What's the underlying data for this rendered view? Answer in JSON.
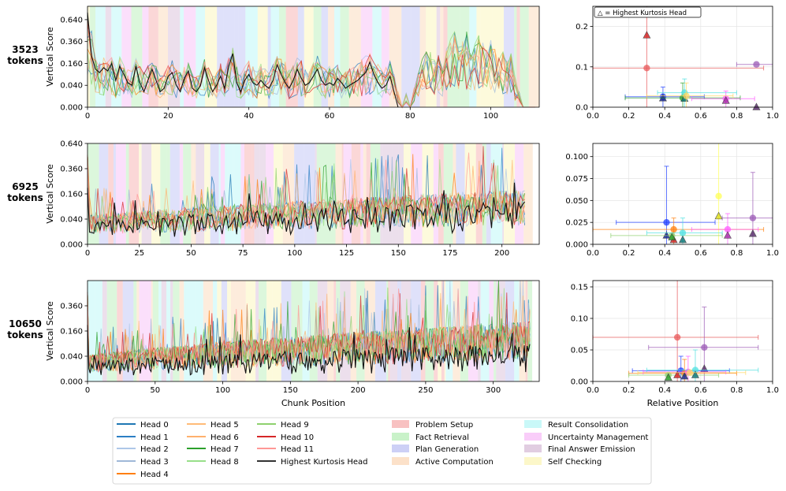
{
  "chart_data": [
    {
      "type": "line",
      "row_label": [
        "3523",
        "tokens"
      ],
      "ylabel": "Vertical Score",
      "xlabel": "",
      "xlim": [
        0,
        112
      ],
      "x_ticks": [
        "0",
        "20",
        "40",
        "60",
        "80",
        "100"
      ],
      "x_tick_values": [
        0,
        20,
        40,
        60,
        80,
        100
      ],
      "y_ticks": [
        "0.000",
        "0.040",
        "0.160",
        "0.360",
        "0.640"
      ],
      "y_tick_values": [
        0,
        0.04,
        0.16,
        0.36,
        0.64
      ],
      "y_scale": "sqrt",
      "ymax": 0.85,
      "highest_kurtosis_series": [
        0.75,
        0.22,
        0.12,
        0.1,
        0.13,
        0.11,
        0.16,
        0.06,
        0.14,
        0.09,
        0.05,
        0.04,
        0.14,
        0.05,
        0.02,
        0.06,
        0.12,
        0.06,
        0.02,
        0.03,
        0.08,
        0.1,
        0.04,
        0.02,
        0.07,
        0.11,
        0.03,
        0.02,
        0.04,
        0.13,
        0.06,
        0.02,
        0.04,
        0.08,
        0.03,
        0.14,
        0.24,
        0.05,
        0.02,
        0.06,
        0.09,
        0.05,
        0.04,
        0.06,
        0.04,
        0.03,
        0.06,
        0.15,
        0.09,
        0.05,
        0.03,
        0.06,
        0.12,
        0.07,
        0.04,
        0.05,
        0.08,
        0.12,
        0.06,
        0.04,
        0.05,
        0.04,
        0.07,
        0.05,
        0.03,
        0.04,
        0.05,
        0.06,
        0.08,
        0.1,
        0.17,
        0.09,
        0.05,
        0.03,
        0.04,
        0.08,
        0.02,
        0.0,
        0.0,
        0.0,
        0.0,
        0.0,
        0.0,
        0.0,
        0.0,
        0.0,
        0.0,
        0.0,
        0.0,
        0.0,
        0.0,
        0.0,
        0.0,
        0.0,
        0.0,
        0.0,
        0.0,
        0.0,
        0.0,
        0.0,
        0.0,
        0.0,
        0.0,
        0.0,
        0.0,
        0.0,
        0.0,
        0.0,
        0.0,
        0.0,
        0.0
      ],
      "heads_envelope": [
        0.8,
        0.5,
        0.2,
        0.18,
        0.22,
        0.2,
        0.25,
        0.15,
        0.22,
        0.18,
        0.12,
        0.12,
        0.2,
        0.15,
        0.1,
        0.16,
        0.18,
        0.14,
        0.08,
        0.1,
        0.16,
        0.2,
        0.12,
        0.1,
        0.14,
        0.18,
        0.1,
        0.08,
        0.1,
        0.2,
        0.14,
        0.08,
        0.1,
        0.16,
        0.12,
        0.22,
        0.3,
        0.14,
        0.1,
        0.14,
        0.18,
        0.14,
        0.12,
        0.16,
        0.14,
        0.1,
        0.16,
        0.22,
        0.2,
        0.18,
        0.12,
        0.16,
        0.22,
        0.18,
        0.14,
        0.14,
        0.18,
        0.22,
        0.16,
        0.12,
        0.14,
        0.14,
        0.18,
        0.14,
        0.12,
        0.16,
        0.14,
        0.18,
        0.2,
        0.24,
        0.28,
        0.2,
        0.16,
        0.12,
        0.14,
        0.18,
        0.1,
        0.02,
        0.0,
        0.02,
        0.0,
        0.03,
        0.1,
        0.2,
        0.26,
        0.3,
        0.2,
        0.28,
        0.12,
        0.3,
        0.45,
        0.5,
        0.35,
        0.42,
        0.48,
        0.3,
        0.38,
        0.45,
        0.36,
        0.28,
        0.4,
        0.3,
        0.2,
        0.3,
        0.18,
        0.25,
        0.08,
        0.02,
        0.0,
        0.0,
        0.0,
        0.0
      ]
    },
    {
      "type": "line",
      "row_label": [
        "6925",
        "tokens"
      ],
      "ylabel": "Vertical Score",
      "xlabel": "",
      "xlim": [
        0,
        218
      ],
      "x_ticks": [
        "0",
        "25",
        "50",
        "75",
        "100",
        "125",
        "150",
        "175",
        "200"
      ],
      "x_tick_values": [
        0,
        25,
        50,
        75,
        100,
        125,
        150,
        175,
        200
      ],
      "y_ticks": [
        "0.000",
        "0.040",
        "0.160",
        "0.360",
        "0.640"
      ],
      "y_tick_values": [
        0,
        0.04,
        0.16,
        0.36,
        0.64
      ],
      "y_scale": "sqrt",
      "ymax": 0.64,
      "n_points": 212,
      "highest_kurtosis_level": 0.02,
      "heads_level": 0.03
    },
    {
      "type": "line",
      "row_label": [
        "10650",
        "tokens"
      ],
      "ylabel": "Vertical Score",
      "xlabel": "Chunk Position",
      "xlim": [
        0,
        334
      ],
      "x_ticks": [
        "0",
        "50",
        "100",
        "150",
        "200",
        "250",
        "300"
      ],
      "x_tick_values": [
        0,
        50,
        100,
        150,
        200,
        250,
        300
      ],
      "y_ticks": [
        "0.000",
        "0.040",
        "0.160",
        "0.360"
      ],
      "y_tick_values": [
        0,
        0.04,
        0.16,
        0.36
      ],
      "y_scale": "sqrt",
      "ymax": 0.64,
      "n_points": 328,
      "highest_kurtosis_level": 0.015,
      "heads_level": 0.025
    },
    {
      "type": "scatter",
      "title": "",
      "xlabel": "",
      "ylabel": "",
      "xlim": [
        0,
        1
      ],
      "ylim": [
        0,
        0.25
      ],
      "x_ticks": [
        "0.0",
        "0.2",
        "0.4",
        "0.6",
        "0.8",
        "1.0"
      ],
      "y_ticks": [
        "0.0",
        "0.1",
        "0.2"
      ],
      "y_tick_values": [
        0,
        0.1,
        0.2
      ],
      "legend_note": "△ = Highest Kurtosis Head",
      "points": [
        {
          "x": 0.3,
          "y": 0.097,
          "xerr": [
            0.0,
            0.95
          ],
          "yerr": [
            0.0,
            0.25
          ],
          "color": "#e8585a",
          "marker": "circle"
        },
        {
          "x": 0.3,
          "y": 0.178,
          "xerr": null,
          "yerr": null,
          "color": "#d62728",
          "marker": "triangle"
        },
        {
          "x": 0.91,
          "y": 0.106,
          "xerr": [
            0.8,
            1.0
          ],
          "yerr": null,
          "color": "#9b59b6",
          "marker": "circle"
        },
        {
          "x": 0.91,
          "y": 0.0,
          "xerr": null,
          "yerr": null,
          "color": "#5e3370",
          "marker": "triangle"
        },
        {
          "x": 0.39,
          "y": 0.026,
          "xerr": [
            0.18,
            0.62
          ],
          "yerr": [
            0.0,
            0.05
          ],
          "color": "#1f3fff",
          "marker": "circle"
        },
        {
          "x": 0.39,
          "y": 0.022,
          "xerr": null,
          "yerr": null,
          "color": "#1a2a8f",
          "marker": "triangle"
        },
        {
          "x": 0.5,
          "y": 0.023,
          "xerr": [
            0.18,
            0.82
          ],
          "yerr": [
            0.0,
            0.06
          ],
          "color": "#2ca02c",
          "marker": "circle"
        },
        {
          "x": 0.51,
          "y": 0.036,
          "xerr": [
            0.36,
            0.8
          ],
          "yerr": [
            0.0,
            0.07
          ],
          "color": "#4fe0e0",
          "marker": "circle"
        },
        {
          "x": 0.51,
          "y": 0.021,
          "xerr": null,
          "yerr": null,
          "color": "#117a7a",
          "marker": "triangle"
        },
        {
          "x": 0.74,
          "y": 0.021,
          "xerr": [
            0.55,
            0.9
          ],
          "yerr": [
            0.0,
            0.04
          ],
          "color": "#ff5cff",
          "marker": "circle"
        },
        {
          "x": 0.74,
          "y": 0.016,
          "xerr": null,
          "yerr": null,
          "color": "#a830a8",
          "marker": "triangle"
        },
        {
          "x": 0.52,
          "y": 0.028,
          "xerr": [
            0.3,
            0.78
          ],
          "yerr": [
            0.0,
            0.06
          ],
          "color": "#ffd966",
          "marker": "circle"
        }
      ]
    },
    {
      "type": "scatter",
      "title": "",
      "xlabel": "",
      "ylabel": "",
      "xlim": [
        0,
        1
      ],
      "ylim": [
        0,
        0.115
      ],
      "x_ticks": [
        "0.0",
        "0.2",
        "0.4",
        "0.6",
        "0.8",
        "1.0"
      ],
      "y_ticks": [
        "0.000",
        "0.025",
        "0.050",
        "0.075",
        "0.100"
      ],
      "y_tick_values": [
        0,
        0.025,
        0.05,
        0.075,
        0.1
      ],
      "points": [
        {
          "x": 0.7,
          "y": 0.055,
          "xerr": null,
          "yerr": [
            0.0,
            0.115
          ],
          "color": "#ffff55",
          "marker": "circle"
        },
        {
          "x": 0.7,
          "y": 0.032,
          "xerr": null,
          "yerr": null,
          "color": "#dddd22",
          "marker": "triangle"
        },
        {
          "x": 0.41,
          "y": 0.025,
          "xerr": [
            0.13,
            0.68
          ],
          "yerr": [
            0.0,
            0.089
          ],
          "color": "#1f3fff",
          "marker": "circle"
        },
        {
          "x": 0.41,
          "y": 0.01,
          "xerr": null,
          "yerr": null,
          "color": "#1a2a8f",
          "marker": "triangle"
        },
        {
          "x": 0.45,
          "y": 0.017,
          "xerr": [
            0.0,
            0.95
          ],
          "yerr": [
            0.0,
            0.03
          ],
          "color": "#ff7f0e",
          "marker": "circle"
        },
        {
          "x": 0.45,
          "y": 0.005,
          "xerr": null,
          "yerr": null,
          "color": "#d62728",
          "marker": "triangle"
        },
        {
          "x": 0.44,
          "y": 0.01,
          "xerr": [
            0.1,
            0.72
          ],
          "yerr": null,
          "color": "#8ed16e",
          "marker": "circle"
        },
        {
          "x": 0.5,
          "y": 0.013,
          "xerr": [
            0.3,
            0.72
          ],
          "yerr": [
            0.0,
            0.03
          ],
          "color": "#4fe0e0",
          "marker": "circle"
        },
        {
          "x": 0.5,
          "y": 0.005,
          "xerr": null,
          "yerr": null,
          "color": "#117a7a",
          "marker": "triangle"
        },
        {
          "x": 0.75,
          "y": 0.017,
          "xerr": [
            0.55,
            0.92
          ],
          "yerr": [
            0.0,
            0.035
          ],
          "color": "#ff5cff",
          "marker": "circle"
        },
        {
          "x": 0.75,
          "y": 0.01,
          "xerr": null,
          "yerr": null,
          "color": "#a830a8",
          "marker": "triangle"
        },
        {
          "x": 0.89,
          "y": 0.03,
          "xerr": [
            0.72,
            1.0
          ],
          "yerr": [
            0.0,
            0.082
          ],
          "color": "#9b59b6",
          "marker": "circle"
        },
        {
          "x": 0.89,
          "y": 0.012,
          "xerr": null,
          "yerr": null,
          "color": "#5e3370",
          "marker": "triangle"
        },
        {
          "x": 0.44,
          "y": 0.008,
          "xerr": null,
          "yerr": null,
          "color": "#2ca02c",
          "marker": "triangle"
        }
      ]
    },
    {
      "type": "scatter",
      "title": "",
      "xlabel": "Relative Position",
      "ylabel": "",
      "xlim": [
        0,
        1
      ],
      "ylim": [
        0,
        0.16
      ],
      "x_ticks": [
        "0.0",
        "0.2",
        "0.4",
        "0.6",
        "0.8",
        "1.0"
      ],
      "y_ticks": [
        "0.00",
        "0.05",
        "0.10",
        "0.15"
      ],
      "y_tick_values": [
        0,
        0.05,
        0.1,
        0.15
      ],
      "points": [
        {
          "x": 0.47,
          "y": 0.07,
          "xerr": [
            0.0,
            0.92
          ],
          "yerr": [
            0.0,
            0.16
          ],
          "color": "#e8585a",
          "marker": "circle"
        },
        {
          "x": 0.62,
          "y": 0.054,
          "xerr": [
            0.31,
            0.92
          ],
          "yerr": [
            0.0,
            0.118
          ],
          "color": "#9b59b6",
          "marker": "circle"
        },
        {
          "x": 0.62,
          "y": 0.02,
          "xerr": null,
          "yerr": null,
          "color": "#5e3370",
          "marker": "triangle"
        },
        {
          "x": 0.49,
          "y": 0.017,
          "xerr": [
            0.22,
            0.76
          ],
          "yerr": [
            0.0,
            0.04
          ],
          "color": "#1f3fff",
          "marker": "circle"
        },
        {
          "x": 0.51,
          "y": 0.013,
          "xerr": [
            0.2,
            0.8
          ],
          "yerr": [
            0.0,
            0.035
          ],
          "color": "#ff7f0e",
          "marker": "circle"
        },
        {
          "x": 0.53,
          "y": 0.015,
          "xerr": [
            0.28,
            0.74
          ],
          "yerr": [
            0.0,
            0.04
          ],
          "color": "#ff5cff",
          "marker": "circle"
        },
        {
          "x": 0.57,
          "y": 0.018,
          "xerr": [
            0.3,
            0.92
          ],
          "yerr": [
            0.0,
            0.05
          ],
          "color": "#4fe0e0",
          "marker": "circle"
        },
        {
          "x": 0.42,
          "y": 0.01,
          "xerr": [
            0.2,
            0.7
          ],
          "yerr": null,
          "color": "#8ed16e",
          "marker": "circle"
        },
        {
          "x": 0.42,
          "y": 0.006,
          "xerr": null,
          "yerr": null,
          "color": "#2ca02c",
          "marker": "triangle"
        },
        {
          "x": 0.47,
          "y": 0.01,
          "xerr": null,
          "yerr": null,
          "color": "#d62728",
          "marker": "triangle"
        },
        {
          "x": 0.51,
          "y": 0.008,
          "xerr": null,
          "yerr": null,
          "color": "#1a2a8f",
          "marker": "triangle"
        },
        {
          "x": 0.57,
          "y": 0.01,
          "xerr": null,
          "yerr": null,
          "color": "#117a7a",
          "marker": "triangle"
        },
        {
          "x": 0.54,
          "y": 0.014,
          "xerr": [
            0.25,
            0.85
          ],
          "yerr": null,
          "color": "#ffd966",
          "marker": "circle"
        }
      ]
    }
  ],
  "legend": {
    "heads": [
      {
        "label": "Head 0",
        "color": "#1f77b4"
      },
      {
        "label": "Head 1",
        "color": "#2c7fc4"
      },
      {
        "label": "Head 2",
        "color": "#aec7e8"
      },
      {
        "label": "Head 3",
        "color": "#9fb8d8"
      },
      {
        "label": "Head 4",
        "color": "#ff7f0e"
      },
      {
        "label": "Head 5",
        "color": "#ffbb78"
      },
      {
        "label": "Head 6",
        "color": "#ffb16e"
      },
      {
        "label": "Head 7",
        "color": "#2ca02c"
      },
      {
        "label": "Head 8",
        "color": "#98df8a"
      },
      {
        "label": "Head 9",
        "color": "#8ed16e"
      },
      {
        "label": "Head 10",
        "color": "#d62728"
      },
      {
        "label": "Head 11",
        "color": "#ff9896"
      },
      {
        "label": "Highest Kurtosis Head",
        "color": "#333333"
      }
    ],
    "phases": [
      {
        "label": "Problem Setup",
        "color": "#f7b6b6"
      },
      {
        "label": "Fact Retrieval",
        "color": "#bff0bf"
      },
      {
        "label": "Plan Generation",
        "color": "#c4c8f5"
      },
      {
        "label": "Active Computation",
        "color": "#fbdcc0"
      },
      {
        "label": "Result Consolidation",
        "color": "#bff7f7"
      },
      {
        "label": "Uncertainty Management",
        "color": "#f8c4f8"
      },
      {
        "label": "Final Answer Emission",
        "color": "#dcc4dc"
      },
      {
        "label": "Self Checking",
        "color": "#fbf6c0"
      }
    ]
  }
}
